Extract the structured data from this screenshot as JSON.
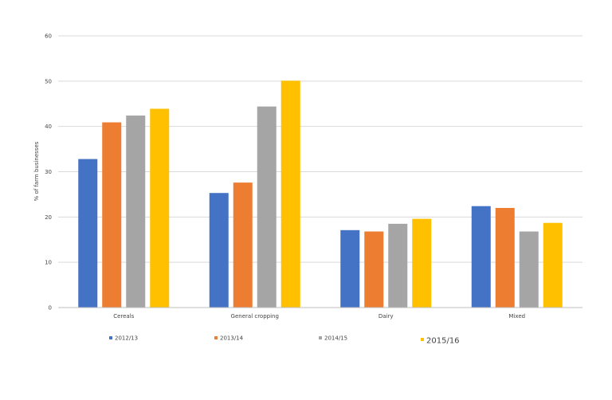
{
  "chart_data": {
    "type": "bar",
    "title": "",
    "xlabel": "",
    "ylabel": "% of farm businesses",
    "ylim": [
      0,
      60
    ],
    "yticks": [
      0,
      10,
      20,
      30,
      40,
      50,
      60
    ],
    "grid": true,
    "legend_position": "bottom",
    "categories": [
      "Cereals",
      "General cropping",
      "Dairy",
      "Mixed"
    ],
    "series": [
      {
        "name": "2012/13",
        "color": "#4472C4",
        "values": [
          32.8,
          25.3,
          17.1,
          22.4
        ]
      },
      {
        "name": "2013/14",
        "color": "#ED7D31",
        "values": [
          40.9,
          27.6,
          16.8,
          22.0
        ]
      },
      {
        "name": "2014/15",
        "color": "#A5A5A5",
        "values": [
          42.4,
          44.4,
          18.5,
          16.8
        ]
      },
      {
        "name": "2015/16",
        "color": "#FFC000",
        "values": [
          43.9,
          50.1,
          19.6,
          18.7
        ]
      }
    ]
  }
}
